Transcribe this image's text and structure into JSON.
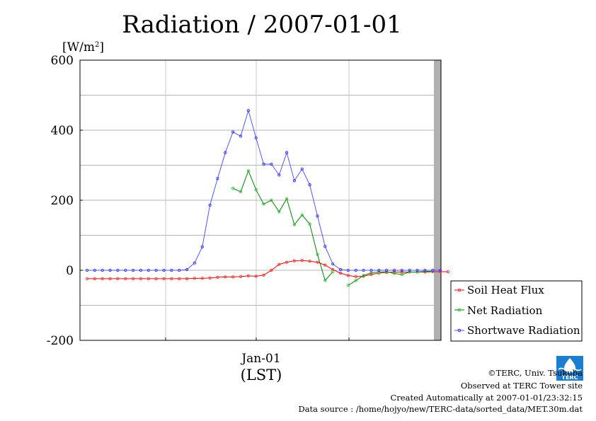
{
  "chart_data": {
    "type": "line",
    "title": "Radiation / 2007-01-01",
    "ylabel": "[W/m2]",
    "ylabel_base": "[W/m",
    "ylabel_sup": "2",
    "ylabel_close": "]",
    "xlabel": "(LST)",
    "x_tick_labels": [
      "Jan-01"
    ],
    "y_ticks": [
      600,
      400,
      200,
      0,
      -200
    ],
    "ylim": [
      -200,
      600
    ],
    "grid": true,
    "legend_position": "right",
    "time_step_minutes": 30,
    "series": [
      {
        "name": "Soil Heat Flux",
        "color": "#ff0000",
        "marker_color": "#ff3333",
        "values": [
          -24,
          -24,
          -24,
          -24,
          -24,
          -24,
          -24,
          -24,
          -24,
          -24,
          -24,
          -24,
          -24,
          -24,
          -23,
          -23,
          -22,
          -20,
          -19,
          -19,
          -18,
          -16,
          -17,
          -14,
          0,
          17,
          23,
          27,
          28,
          26,
          23,
          15,
          2,
          -8,
          -15,
          -18,
          -17,
          -12,
          -8,
          -6,
          -5,
          -5,
          -5,
          -5,
          -5,
          -4,
          -4,
          -4
        ]
      },
      {
        "name": "Net Radiation",
        "color": "#008000",
        "marker_color": "#33cc33",
        "values": [
          null,
          null,
          null,
          null,
          null,
          null,
          null,
          null,
          null,
          null,
          null,
          null,
          null,
          null,
          null,
          null,
          null,
          null,
          null,
          234,
          224,
          284,
          230,
          189,
          200,
          167,
          204,
          130,
          158,
          132,
          45,
          -29,
          -4,
          null,
          -43,
          -29,
          -15,
          -7,
          -5,
          -4,
          -9,
          -12,
          -5,
          -5,
          -3,
          -3
        ]
      },
      {
        "name": "Shortwave Radiation",
        "color": "#5555ff",
        "marker_color": "#3333ff",
        "values": [
          0,
          0,
          0,
          0,
          0,
          0,
          0,
          0,
          0,
          0,
          0,
          0,
          0,
          2,
          21,
          67,
          186,
          262,
          336,
          395,
          383,
          456,
          378,
          303,
          303,
          272,
          336,
          256,
          289,
          244,
          155,
          68,
          18,
          2,
          0,
          0,
          0,
          0,
          0,
          0,
          0,
          0,
          0,
          0,
          0,
          0,
          0
        ]
      }
    ]
  },
  "footer": {
    "copyright": "©TERC, Univ. Tsukuba",
    "observed": "Observed at TERC Tower site",
    "created": "Created Automatically at 2007-01-01/23:32:15",
    "source": "Data source : /home/hojyo/new/TERC-data/sorted_data/MET.30m.dat"
  },
  "logo": {
    "text": "TERC"
  }
}
